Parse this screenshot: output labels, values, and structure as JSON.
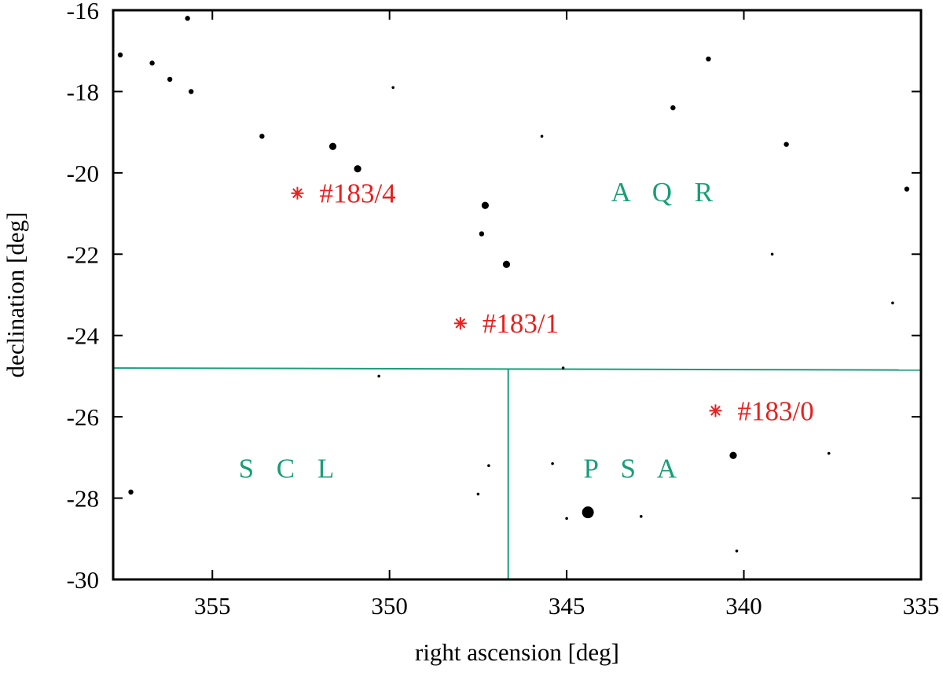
{
  "chart_data": {
    "type": "scatter",
    "title": "",
    "xlabel": "right ascension [deg]",
    "ylabel": "declination [deg]",
    "xlim": [
      357.8,
      335
    ],
    "ylim": [
      -30,
      -16
    ],
    "x_ticks": [
      355,
      350,
      345,
      340,
      335
    ],
    "y_ticks": [
      -16,
      -18,
      -20,
      -22,
      -24,
      -26,
      -28,
      -30
    ],
    "grid": false,
    "colors": {
      "stars": "#000000",
      "targets": "#e8201e",
      "boundaries": "#1a9e78"
    },
    "stars": [
      {
        "ra": 357.6,
        "dec": -17.1,
        "size": 2
      },
      {
        "ra": 356.7,
        "dec": -17.3,
        "size": 2
      },
      {
        "ra": 356.2,
        "dec": -17.7,
        "size": 2
      },
      {
        "ra": 355.7,
        "dec": -16.2,
        "size": 2
      },
      {
        "ra": 355.6,
        "dec": -18.0,
        "size": 2
      },
      {
        "ra": 353.6,
        "dec": -19.1,
        "size": 2
      },
      {
        "ra": 351.6,
        "dec": -19.35,
        "size": 3
      },
      {
        "ra": 350.9,
        "dec": -19.9,
        "size": 3
      },
      {
        "ra": 349.9,
        "dec": -17.9,
        "size": 1
      },
      {
        "ra": 347.3,
        "dec": -20.8,
        "size": 3
      },
      {
        "ra": 347.4,
        "dec": -21.5,
        "size": 2
      },
      {
        "ra": 346.7,
        "dec": -22.25,
        "size": 3
      },
      {
        "ra": 345.7,
        "dec": -19.1,
        "size": 1
      },
      {
        "ra": 342.0,
        "dec": -18.4,
        "size": 2
      },
      {
        "ra": 341.0,
        "dec": -17.2,
        "size": 2
      },
      {
        "ra": 338.8,
        "dec": -19.3,
        "size": 2
      },
      {
        "ra": 339.2,
        "dec": -22.0,
        "size": 1
      },
      {
        "ra": 335.4,
        "dec": -20.4,
        "size": 2
      },
      {
        "ra": 335.8,
        "dec": -23.2,
        "size": 1
      },
      {
        "ra": 350.3,
        "dec": -25.0,
        "size": 1
      },
      {
        "ra": 345.1,
        "dec": -24.8,
        "size": 1
      },
      {
        "ra": 357.3,
        "dec": -27.85,
        "size": 2
      },
      {
        "ra": 347.2,
        "dec": -27.2,
        "size": 1
      },
      {
        "ra": 347.5,
        "dec": -27.9,
        "size": 1
      },
      {
        "ra": 345.4,
        "dec": -27.15,
        "size": 1
      },
      {
        "ra": 344.4,
        "dec": -28.35,
        "size": 5
      },
      {
        "ra": 345.0,
        "dec": -28.5,
        "size": 1
      },
      {
        "ra": 342.9,
        "dec": -28.45,
        "size": 1
      },
      {
        "ra": 340.3,
        "dec": -26.95,
        "size": 3
      },
      {
        "ra": 337.6,
        "dec": -26.9,
        "size": 1
      },
      {
        "ra": 340.2,
        "dec": -29.3,
        "size": 1
      }
    ],
    "targets": [
      {
        "label": "#183/4",
        "ra": 352.6,
        "dec": -20.5
      },
      {
        "label": "#183/1",
        "ra": 348.0,
        "dec": -23.7
      },
      {
        "label": "#183/0",
        "ra": 340.8,
        "dec": -25.85
      }
    ],
    "constellations": [
      {
        "label": "A Q R",
        "ra": 342.2,
        "dec": -20.7
      },
      {
        "label": "S C L",
        "ra": 352.8,
        "dec": -27.5
      },
      {
        "label": "P S A",
        "ra": 343.1,
        "dec": -27.5
      }
    ],
    "boundaries": [
      {
        "from": [
          357.8,
          -24.8
        ],
        "to": [
          335,
          -24.85
        ]
      },
      {
        "from": [
          346.65,
          -24.82
        ],
        "to": [
          346.65,
          -30
        ]
      }
    ]
  }
}
